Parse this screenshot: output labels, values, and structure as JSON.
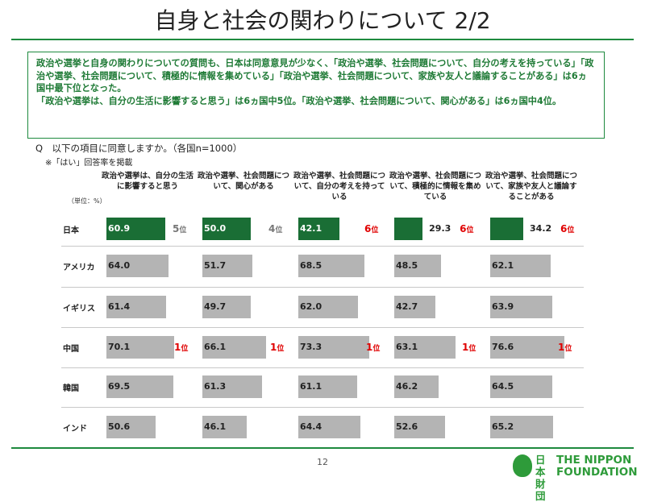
{
  "title": "自身と社会の関わりについて 2/2",
  "summary": {
    "line1": "政治や選挙と自身の関わりについての質問も、日本は同意意見が少なく、「政治や選挙、社会問題について、自分の考えを持っている」「政治や選挙、社会問題について、積極的に情報を集めている」「政治や選挙、社会問題について、家族や友人と議論することがある」は6ヵ国中最下位となった。",
    "line2": "「政治や選挙は、自分の生活に影響すると思う」は6ヵ国中5位。「政治や選挙、社会問題について、関心がある」は6ヵ国中4位。"
  },
  "question": "Q　以下の項目に同意しますか。（各国n=1000）",
  "note": "※「はい」回答率を掲載",
  "unit_label": "（単位：%）",
  "rank_unit": "位",
  "page_number": "12",
  "logo": {
    "jp_line1": "日本",
    "jp_line2": "財団",
    "en_line1": "THE NIPPON",
    "en_line2": "FOUNDATION"
  },
  "colors": {
    "japan_bar": "#1a6e35",
    "other_bar": "#b4b4b4",
    "accent_green": "#1e8a3e",
    "rank_red": "#e00000",
    "rank_gray": "#777777"
  },
  "chart_data": {
    "type": "bar",
    "orientation": "horizontal",
    "xlim": [
      0,
      100
    ],
    "categories": [
      "日本",
      "アメリカ",
      "イギリス",
      "中国",
      "韓国",
      "インド"
    ],
    "series": [
      {
        "name": "政治や選挙は、自分の生活に影響すると思う",
        "values": [
          60.9,
          64.0,
          61.4,
          70.1,
          69.5,
          50.6
        ],
        "ranks": {
          "日本": "5",
          "中国": "1"
        }
      },
      {
        "name": "政治や選挙、社会問題について、関心がある",
        "values": [
          50.0,
          51.7,
          49.7,
          66.1,
          61.3,
          46.1
        ],
        "ranks": {
          "日本": "4",
          "中国": "1"
        }
      },
      {
        "name": "政治や選挙、社会問題について、自分の考えを持っている",
        "values": [
          42.1,
          68.5,
          62.0,
          73.3,
          61.1,
          64.4
        ],
        "ranks": {
          "日本": "6",
          "中国": "1"
        }
      },
      {
        "name": "政治や選挙、社会問題について、積極的に情報を集めている",
        "values": [
          29.3,
          48.5,
          42.7,
          63.1,
          46.2,
          52.6
        ],
        "ranks": {
          "日本": "6",
          "中国": "1"
        }
      },
      {
        "name": "政治や選挙、社会問題について、家族や友人と議論することがある",
        "values": [
          34.2,
          62.1,
          63.9,
          76.6,
          64.5,
          65.2
        ],
        "ranks": {
          "日本": "6",
          "中国": "1"
        }
      }
    ]
  }
}
